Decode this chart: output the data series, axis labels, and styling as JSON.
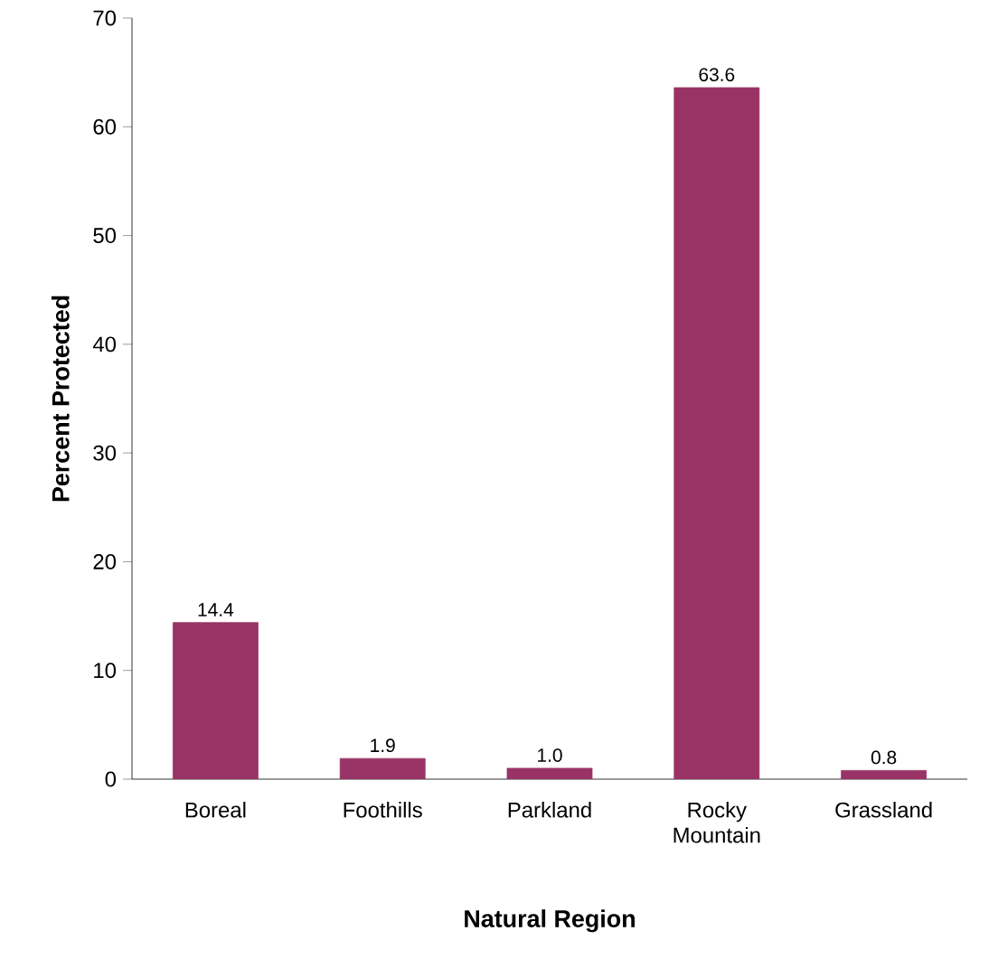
{
  "chart_data": {
    "type": "bar",
    "xlabel": "Natural Region",
    "ylabel": "Percent Protected",
    "categories": [
      "Boreal",
      "Foothills",
      "Parkland",
      "Rocky Mountain",
      "Grassland"
    ],
    "values": [
      14.4,
      1.9,
      1.0,
      63.6,
      0.8
    ],
    "value_labels": [
      "14.4",
      "1.9",
      "1.0",
      "63.6",
      "0.8"
    ],
    "color": "#993366",
    "ylim": [
      0,
      70
    ],
    "yticks": [
      0,
      10,
      20,
      30,
      40,
      50,
      60,
      70
    ],
    "grid": false
  }
}
